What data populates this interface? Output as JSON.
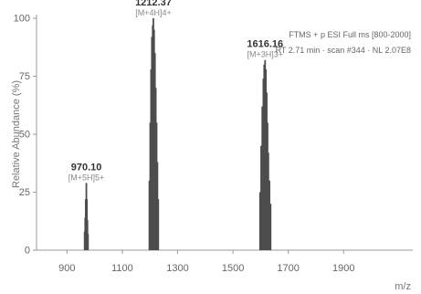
{
  "chart_data": {
    "type": "bar",
    "xlabel": "m/z",
    "ylabel": "Relative Abundance (%)",
    "xlim": [
      790,
      2150
    ],
    "ylim": [
      0,
      100
    ],
    "x_ticks": [
      900,
      1100,
      1300,
      1500,
      1700,
      1900
    ],
    "y_ticks": [
      0,
      25,
      50,
      75,
      100
    ],
    "info_lines": [
      "FTMS + p ESI Full ms [800-2000]",
      "RT 2.71 min · scan #344 · NL 2.07E8"
    ],
    "peak_labels": [
      {
        "mass": "970.10",
        "ion": "[M+5H]5+",
        "x": 970.1,
        "y": 29
      },
      {
        "mass": "1212.37",
        "ion": "[M+4H]4+",
        "x": 1212.37,
        "y": 100
      },
      {
        "mass": "1616.16",
        "ion": "[M+3H]3+",
        "x": 1616.16,
        "y": 82
      }
    ],
    "peaks": [
      {
        "x": 964,
        "y": 8
      },
      {
        "x": 966,
        "y": 14
      },
      {
        "x": 968,
        "y": 22
      },
      {
        "x": 970.1,
        "y": 29
      },
      {
        "x": 972,
        "y": 22
      },
      {
        "x": 974,
        "y": 13
      },
      {
        "x": 976,
        "y": 7
      },
      {
        "x": 1198,
        "y": 30
      },
      {
        "x": 1201,
        "y": 55
      },
      {
        "x": 1204,
        "y": 78
      },
      {
        "x": 1207,
        "y": 92
      },
      {
        "x": 1210,
        "y": 97
      },
      {
        "x": 1212.37,
        "y": 100
      },
      {
        "x": 1215,
        "y": 95
      },
      {
        "x": 1218,
        "y": 85
      },
      {
        "x": 1221,
        "y": 70
      },
      {
        "x": 1224,
        "y": 55
      },
      {
        "x": 1227,
        "y": 38
      },
      {
        "x": 1230,
        "y": 22
      },
      {
        "x": 1598,
        "y": 25
      },
      {
        "x": 1602,
        "y": 45
      },
      {
        "x": 1606,
        "y": 62
      },
      {
        "x": 1610,
        "y": 74
      },
      {
        "x": 1613,
        "y": 80
      },
      {
        "x": 1616.16,
        "y": 82
      },
      {
        "x": 1619,
        "y": 78
      },
      {
        "x": 1622,
        "y": 68
      },
      {
        "x": 1625,
        "y": 55
      },
      {
        "x": 1628,
        "y": 42
      },
      {
        "x": 1632,
        "y": 30
      },
      {
        "x": 1636,
        "y": 20
      }
    ]
  }
}
